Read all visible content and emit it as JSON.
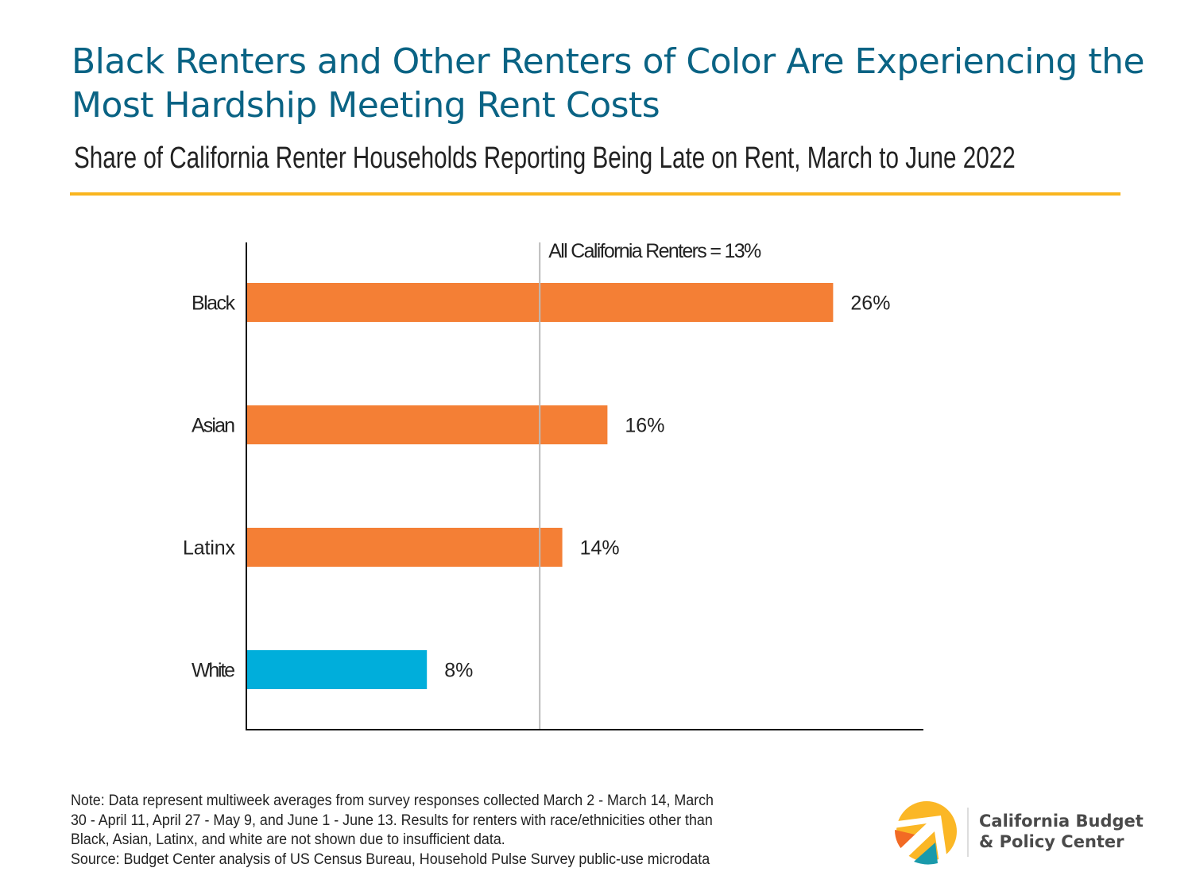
{
  "header": {
    "title_line1": "Black Renters and Other Renters of Color Are Experiencing the",
    "title_line2": "Most Hardship Meeting Rent Costs",
    "subtitle": "Share of California Renter Households Reporting Being Late on Rent, March to June 2022"
  },
  "chart_data": {
    "type": "bar",
    "orientation": "horizontal",
    "categories": [
      "Black",
      "Asian",
      "Latinx",
      "White"
    ],
    "values": [
      26,
      16,
      14,
      8
    ],
    "data_labels": [
      "26%",
      "16%",
      "14%",
      "8%"
    ],
    "unit": "%",
    "xlim": [
      0,
      30
    ],
    "grid": false,
    "colors": [
      "#f47f35",
      "#f47f35",
      "#f47f35",
      "#00aedb"
    ],
    "reference_line": {
      "value": 13,
      "label": "All California Renters = 13%",
      "color": "#bbbbbb"
    }
  },
  "footer": {
    "note_lines": [
      "Note: Data represent multiweek averages from survey responses collected March 2 - March 14, March",
      "30 - April 11, April 27 - May 9, and June 1 - June 13. Results for renters with race/ethnicities other than",
      "Black, Asian, Latinx, and white are not shown due to insufficient data.",
      "Source: Budget Center analysis of US Census Bureau, Household Pulse Survey public-use microdata"
    ],
    "logo_line1": "California Budget",
    "logo_line2": "& Policy Center"
  },
  "colors": {
    "title": "#0a6384",
    "rule": "#f9b51e"
  }
}
